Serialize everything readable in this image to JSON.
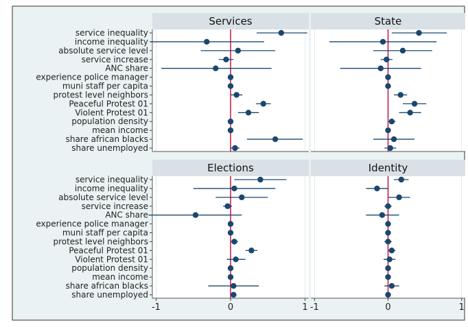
{
  "chart_data": {
    "type": "scatter",
    "variables": [
      "service inequality",
      "income inequality",
      "absolute service level",
      "service increase",
      "ANC share",
      "experience police manager",
      "muni staff per capita",
      "protest level neighbors",
      "Peaceful Protest 01",
      "Violent Protest 01",
      "population density",
      "mean income",
      "share african blacks",
      "share unemployed"
    ],
    "x_ticks": [
      "-1",
      "0",
      "1"
    ],
    "xlim": [
      -1.05,
      1.05
    ],
    "reference_line": 0,
    "grid": true,
    "panels": [
      {
        "title": "Services",
        "estimates": [
          0.68,
          -0.32,
          0.1,
          -0.06,
          -0.2,
          0,
          0,
          0.08,
          0.44,
          0.24,
          0,
          0,
          0.6,
          0.06
        ],
        "ci_lower": [
          0.35,
          -1.08,
          -0.4,
          -0.16,
          -0.93,
          -0.01,
          -0.01,
          0.0,
          0.34,
          0.1,
          -0.01,
          -0.01,
          0.22,
          0.0
        ],
        "ci_upper": [
          1.03,
          0.45,
          0.6,
          0.04,
          0.55,
          0.01,
          0.01,
          0.16,
          0.54,
          0.38,
          0.01,
          0.01,
          0.97,
          0.12
        ]
      },
      {
        "title": "State",
        "estimates": [
          0.42,
          -0.07,
          0.2,
          -0.02,
          -0.1,
          0,
          0,
          0.17,
          0.36,
          0.3,
          0.05,
          0,
          0.08,
          0.03
        ],
        "ci_lower": [
          0.05,
          -0.8,
          -0.2,
          -0.1,
          -0.65,
          -0.01,
          -0.01,
          0.08,
          0.2,
          0.15,
          0.0,
          -0.01,
          -0.2,
          -0.05
        ],
        "ci_upper": [
          0.8,
          0.66,
          0.6,
          0.06,
          0.45,
          0.01,
          0.01,
          0.26,
          0.52,
          0.45,
          0.1,
          0.01,
          0.36,
          0.11
        ]
      },
      {
        "title": "Elections",
        "estimates": [
          0.4,
          0.05,
          0.15,
          -0.04,
          -0.47,
          0,
          0,
          0.05,
          0.28,
          0.07,
          0,
          0,
          0.04,
          0.04
        ],
        "ci_lower": [
          0.05,
          -0.5,
          -0.2,
          -0.1,
          -1.1,
          -0.01,
          -0.01,
          0.0,
          0.2,
          -0.05,
          -0.01,
          -0.01,
          -0.3,
          0.0
        ],
        "ci_upper": [
          0.75,
          0.6,
          0.5,
          0.02,
          0.15,
          0.01,
          0.01,
          0.1,
          0.36,
          0.2,
          0.01,
          0.01,
          0.38,
          0.08
        ]
      },
      {
        "title": "Identity",
        "estimates": [
          0.18,
          -0.15,
          0.15,
          0.0,
          -0.08,
          0,
          0,
          0.0,
          0.05,
          0.02,
          0,
          0,
          0.05,
          0.0
        ],
        "ci_lower": [
          0.08,
          -0.3,
          0.0,
          -0.05,
          -0.3,
          -0.01,
          -0.01,
          -0.05,
          0.0,
          -0.06,
          -0.01,
          -0.01,
          -0.05,
          -0.03
        ],
        "ci_upper": [
          0.28,
          0.0,
          0.3,
          0.05,
          0.15,
          0.01,
          0.01,
          0.05,
          0.1,
          0.1,
          0.01,
          0.01,
          0.15,
          0.03
        ]
      }
    ]
  },
  "colors": {
    "background": "#eaf2f3",
    "plot_area": "#ffffff",
    "header": "#d9e1e6",
    "gridline": "#e3e7ea",
    "marker": "#1a476f",
    "ci_line": "#1a476f",
    "reference_line": "#c10534",
    "border": "#333333"
  }
}
